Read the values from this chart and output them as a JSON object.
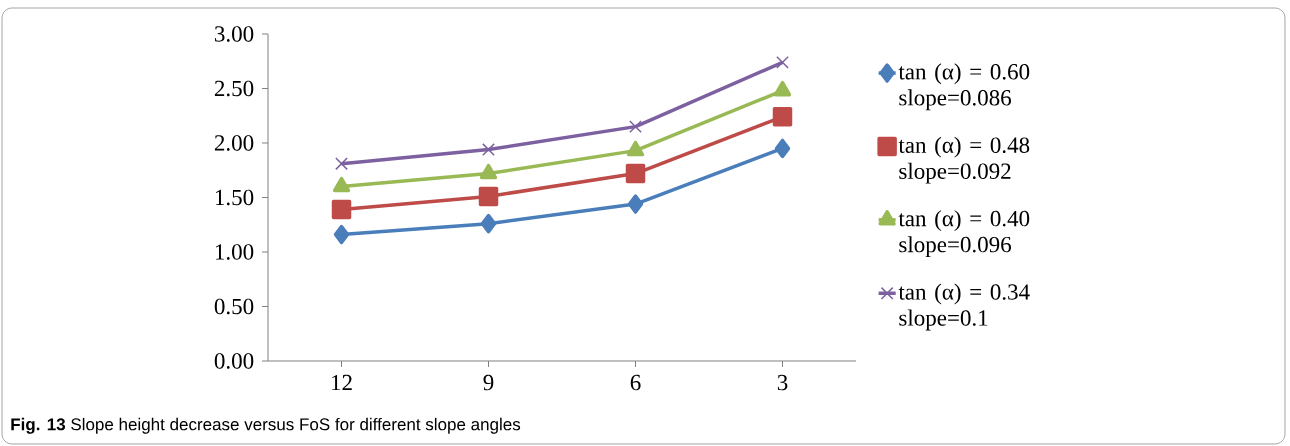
{
  "chart_data": {
    "type": "line",
    "title": "**Fig. 13** Slope height decrease versus FoS for different slope angles",
    "categories": [
      "12",
      "9",
      "6",
      "3"
    ],
    "ylim": [
      0,
      3
    ],
    "yticks": [
      {
        "value": 0,
        "label": "0.00"
      },
      {
        "value": 0.5,
        "label": "0.50"
      },
      {
        "value": 1,
        "label": "1.00"
      },
      {
        "value": 1.5,
        "label": "1.50"
      },
      {
        "value": 2,
        "label": "2.00"
      },
      {
        "value": 2.5,
        "label": "2.50"
      },
      {
        "value": 3,
        "label": "3.00"
      }
    ],
    "grid": false,
    "legend": "right",
    "line_style": "solid",
    "series": [
      {
        "name": "tan (α) = 0.60 slope=0.086",
        "color": "#4a7ebb",
        "marker": "diamond",
        "values": [
          1.16,
          1.26,
          1.44,
          1.95
        ]
      },
      {
        "name": "tan (α) = 0.48 slope=0.092",
        "color": "#be4b48",
        "marker": "square",
        "values": [
          1.39,
          1.51,
          1.72,
          2.24
        ]
      },
      {
        "name": "tan (α) = 0.40 slope=0.096",
        "color": "#98b954",
        "marker": "triangle",
        "values": [
          1.6,
          1.72,
          1.93,
          2.48
        ]
      },
      {
        "name": "tan (α) = 0.34 slope=0.1",
        "color": "#7d60a0",
        "marker": "cross",
        "values": [
          1.81,
          1.94,
          2.15,
          2.74
        ]
      }
    ]
  }
}
